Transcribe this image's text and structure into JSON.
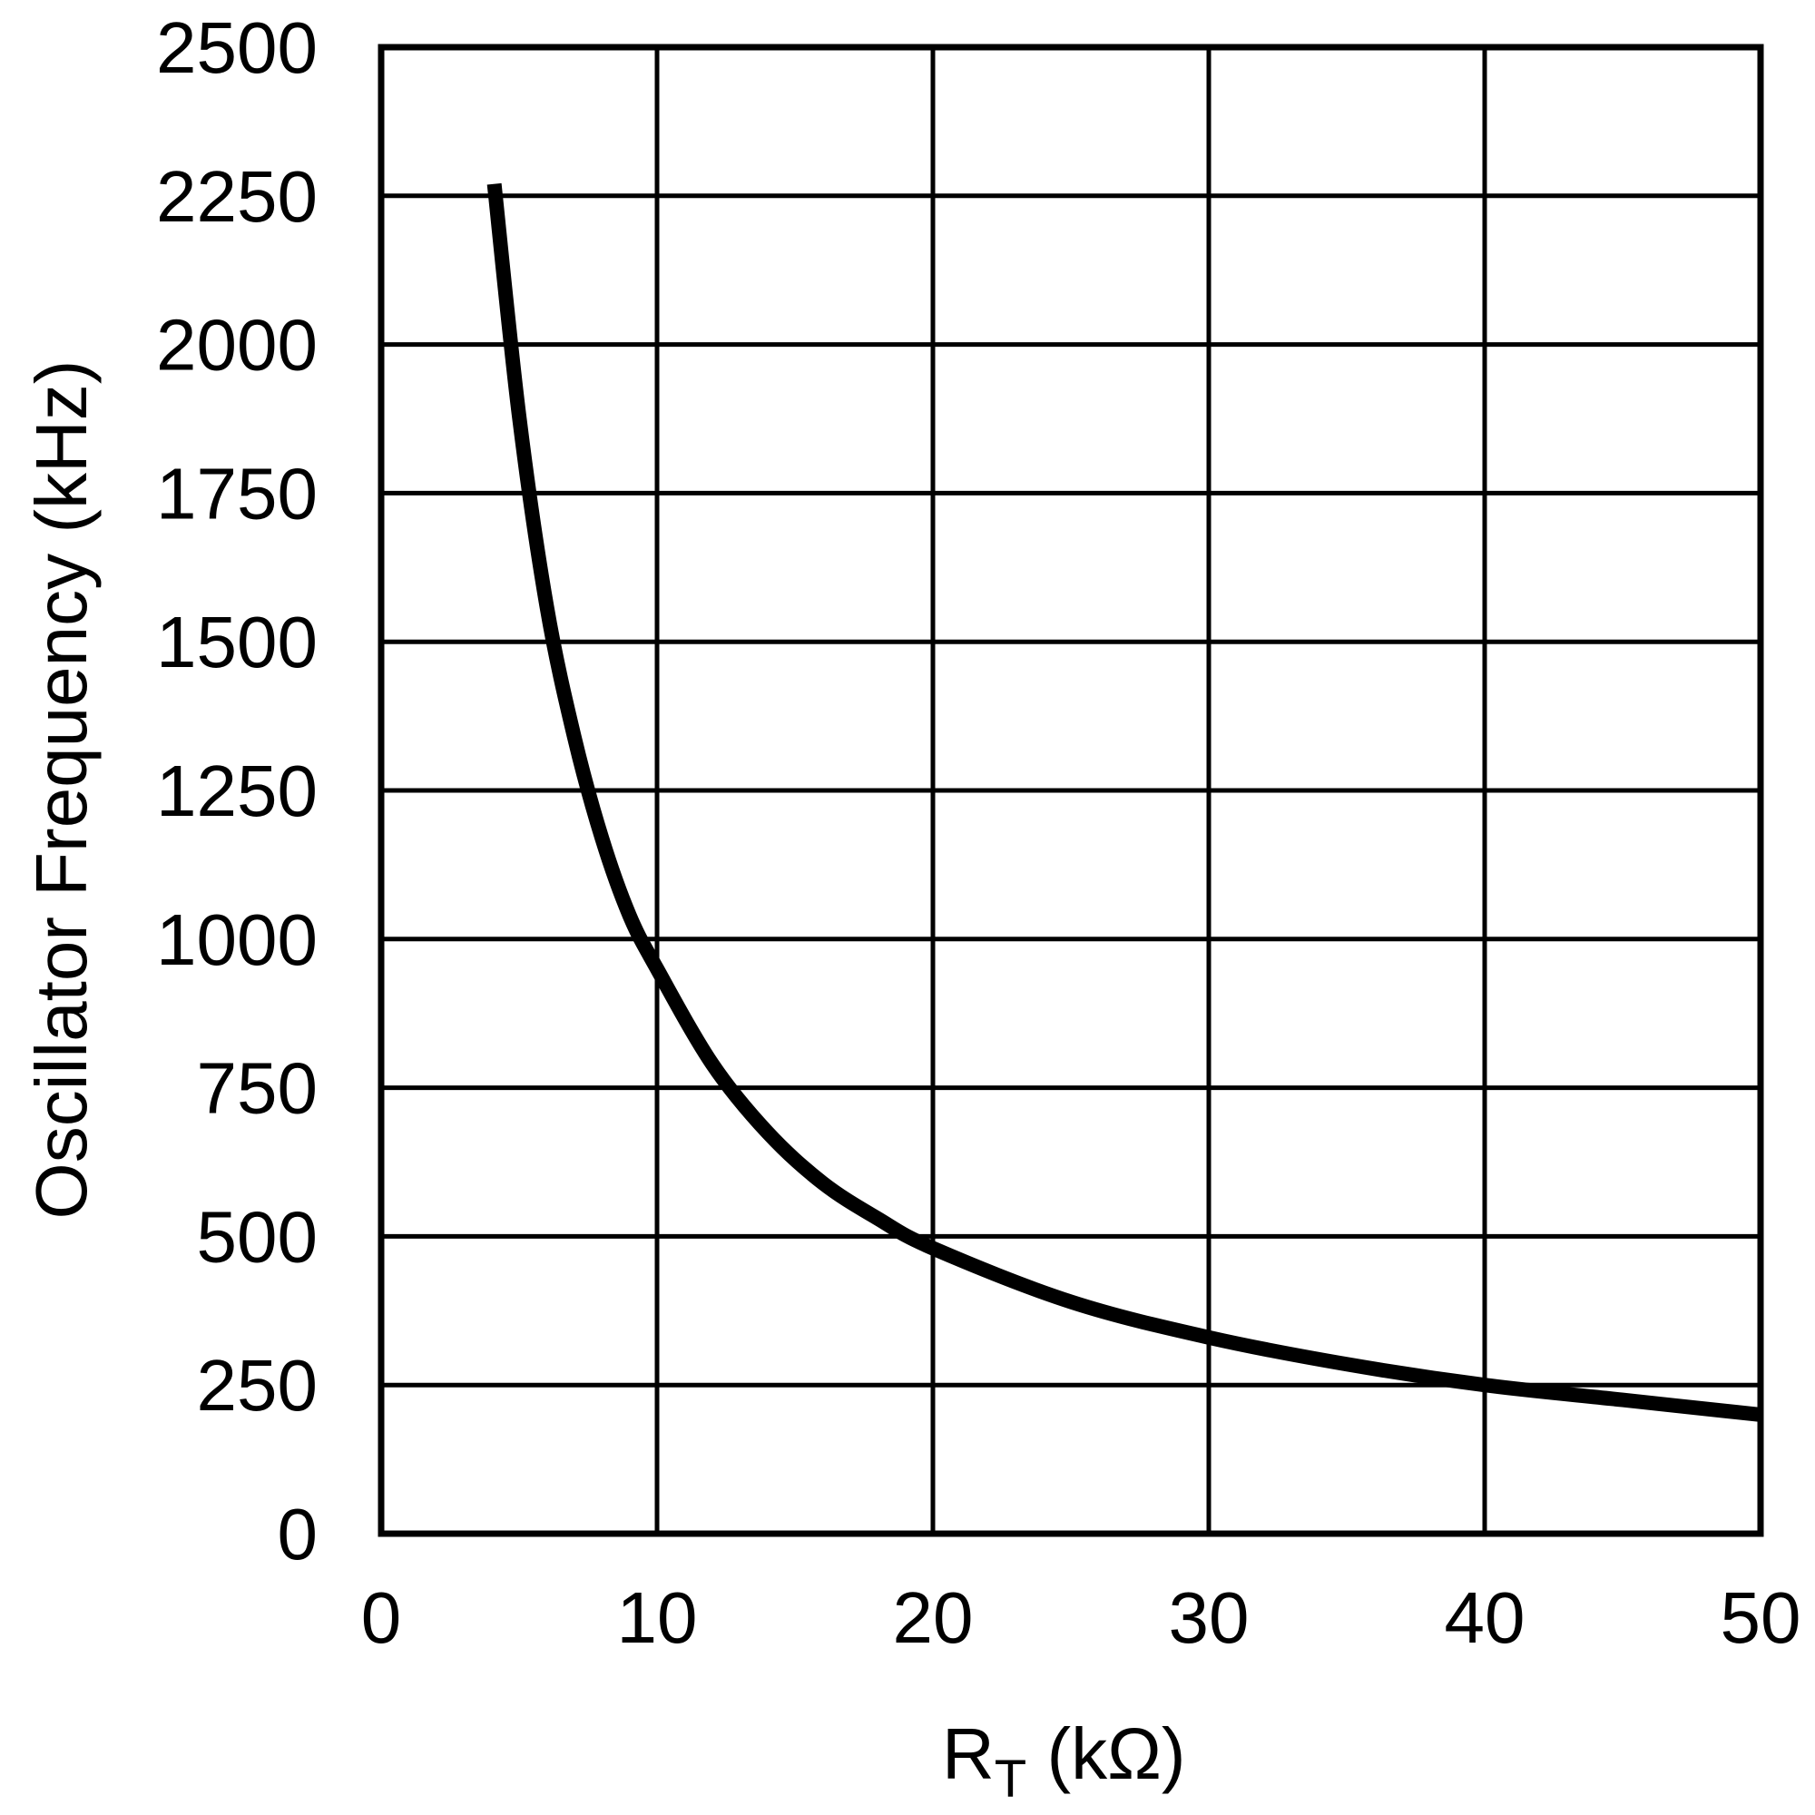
{
  "chart_data": {
    "type": "line",
    "title": "",
    "xlabel": "R_T (kΩ)",
    "xlabel_main": "R",
    "xlabel_sub": "T",
    "xlabel_unit": " (kΩ)",
    "ylabel": "Oscillator Frequency (kHz)",
    "xlim": [
      0,
      50
    ],
    "ylim": [
      0,
      2500
    ],
    "grid": true,
    "legend": null,
    "x_ticks": [
      "0",
      "10",
      "20",
      "30",
      "40",
      "50"
    ],
    "y_ticks": [
      "0",
      "250",
      "500",
      "750",
      "1000",
      "1250",
      "1500",
      "1750",
      "2000",
      "2250",
      "2500"
    ],
    "series": [
      {
        "name": "Oscillator Frequency vs R_T",
        "color": "#000000",
        "x": [
          4.1,
          5,
          6,
          7,
          8,
          9,
          10,
          12,
          14,
          16,
          18,
          20,
          25,
          30,
          35,
          40,
          45,
          50
        ],
        "values": [
          2270,
          1880,
          1560,
          1340,
          1170,
          1040,
          950,
          790,
          675,
          590,
          530,
          480,
          390,
          330,
          285,
          250,
          225,
          200
        ]
      }
    ]
  }
}
